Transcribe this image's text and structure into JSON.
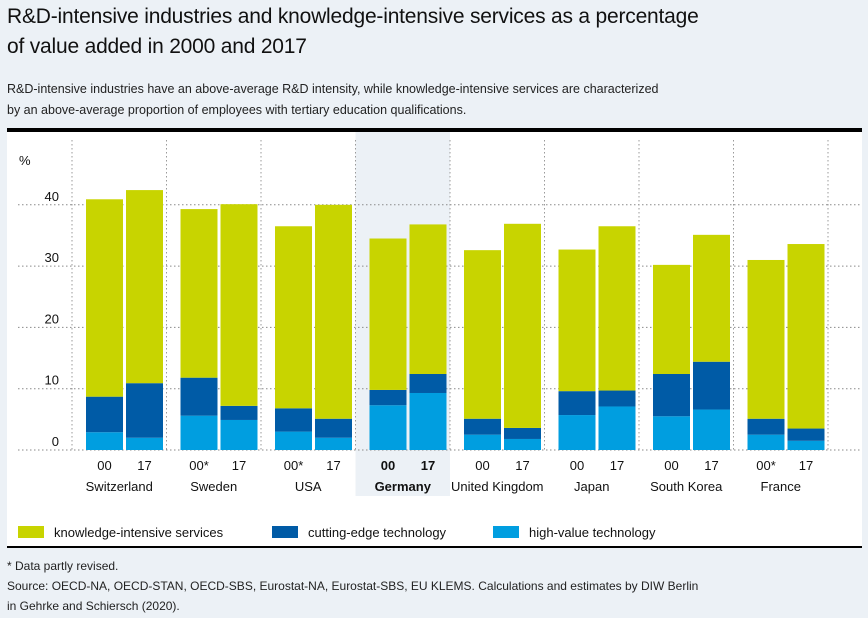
{
  "header": {
    "title_line1": "R&D-intensive industries and knowledge-intensive services as a percentage",
    "title_line2": "of value added in 2000 and 2017",
    "subtitle_line1": "R&D-intensive industries have an above-average R&D intensity, while knowledge-intensive services are characterized",
    "subtitle_line2": "by an above-average proportion of employees with tertiary education qualifications."
  },
  "colors": {
    "knowledge_intensive_services": "#c8d400",
    "cutting_edge_technology": "#005ba6",
    "high_value_technology": "#009ee0",
    "highlight_background": "#ecf1f6"
  },
  "chart_data": {
    "type": "bar",
    "stacked": true,
    "title": "R&D-intensive industries and knowledge-intensive services as a percentage of value added in 2000 and 2017",
    "ylabel": "%",
    "xlabel": "",
    "ylim": [
      0,
      50
    ],
    "yticks": [
      0,
      10,
      20,
      30,
      40
    ],
    "grid": true,
    "legend_position": "bottom",
    "highlighted_group": "Germany",
    "groups": [
      "Switzerland",
      "Sweden",
      "USA",
      "Germany",
      "United Kingdom",
      "Japan",
      "South Korea",
      "France"
    ],
    "categories": [
      {
        "group": "Switzerland",
        "label": "00"
      },
      {
        "group": "Switzerland",
        "label": "17"
      },
      {
        "group": "Sweden",
        "label": "00*"
      },
      {
        "group": "Sweden",
        "label": "17"
      },
      {
        "group": "USA",
        "label": "00*"
      },
      {
        "group": "USA",
        "label": "17"
      },
      {
        "group": "Germany",
        "label": "00"
      },
      {
        "group": "Germany",
        "label": "17"
      },
      {
        "group": "United Kingdom",
        "label": "00"
      },
      {
        "group": "United Kingdom",
        "label": "17"
      },
      {
        "group": "Japan",
        "label": "00"
      },
      {
        "group": "Japan",
        "label": "17"
      },
      {
        "group": "South Korea",
        "label": "00"
      },
      {
        "group": "South Korea",
        "label": "17"
      },
      {
        "group": "France",
        "label": "00*"
      },
      {
        "group": "France",
        "label": "17"
      }
    ],
    "series": [
      {
        "name": "high-value technology",
        "key": "high_value_technology",
        "values": [
          2.9,
          2.0,
          5.6,
          4.9,
          3.0,
          2.0,
          7.3,
          9.3,
          2.5,
          1.8,
          5.7,
          7.1,
          5.5,
          6.6,
          2.5,
          1.5
        ]
      },
      {
        "name": "cutting-edge technology",
        "key": "cutting_edge_technology",
        "values": [
          5.8,
          8.9,
          6.2,
          2.3,
          3.8,
          3.1,
          2.5,
          3.1,
          2.6,
          1.8,
          3.9,
          2.6,
          6.9,
          7.8,
          2.6,
          2.0
        ]
      },
      {
        "name": "knowledge-intensive services",
        "key": "knowledge_intensive_services",
        "values": [
          32.2,
          31.5,
          27.5,
          32.9,
          29.7,
          34.9,
          24.7,
          24.4,
          27.5,
          33.3,
          23.1,
          26.8,
          17.8,
          20.7,
          25.9,
          30.1
        ]
      }
    ],
    "legend": [
      {
        "label": "knowledge-intensive services",
        "key": "knowledge_intensive_services"
      },
      {
        "label": "cutting-edge technology",
        "key": "cutting_edge_technology"
      },
      {
        "label": "high-value technology",
        "key": "high_value_technology"
      }
    ]
  },
  "footer": {
    "note": "* Data partly revised.",
    "source_line1": "Source: OECD-NA, OECD-STAN, OECD-SBS, Eurostat-NA, Eurostat-SBS, EU KLEMS. Calculations and estimates by DIW Berlin",
    "source_line2": "in Gehrke and Schiersch (2020)."
  }
}
